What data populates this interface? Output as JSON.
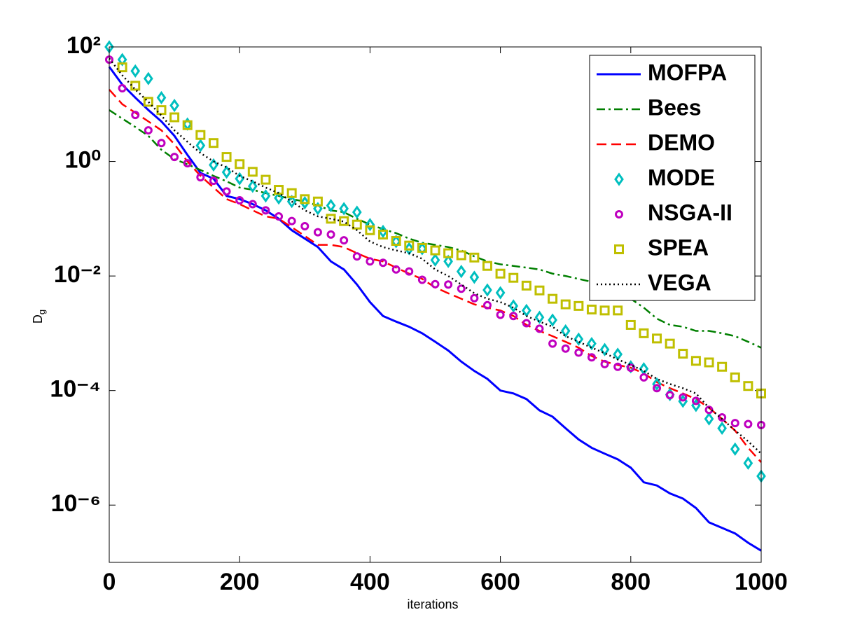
{
  "chart_data": {
    "type": "line",
    "xlabel": "iterations",
    "ylabel": "D",
    "ylabel_sub": "g",
    "log_y": true,
    "legend": "upper right",
    "xlim": [
      0,
      1000
    ],
    "xticks": [
      0,
      200,
      400,
      600,
      800,
      1000
    ],
    "ylim": [
      1e-07,
      100
    ],
    "yticks": [
      {
        "value": 100,
        "label": "10²"
      },
      {
        "value": 1,
        "label": "10⁰"
      },
      {
        "value": 0.01,
        "label": "10⁻²"
      },
      {
        "value": 0.0001,
        "label": "10⁻⁴"
      },
      {
        "value": 1e-06,
        "label": "10⁻⁶"
      }
    ],
    "x": [
      0,
      20,
      40,
      60,
      80,
      100,
      120,
      140,
      160,
      180,
      200,
      220,
      240,
      260,
      280,
      300,
      320,
      340,
      360,
      380,
      400,
      420,
      440,
      460,
      480,
      500,
      520,
      540,
      560,
      580,
      600,
      620,
      640,
      660,
      680,
      700,
      720,
      740,
      760,
      780,
      800,
      820,
      840,
      860,
      880,
      900,
      920,
      940,
      960,
      980,
      1000
    ],
    "series": [
      {
        "name": "MOFPA",
        "color": "#0000ff",
        "style": "solid",
        "values": [
          45,
          22,
          13,
          7.9,
          5,
          2.8,
          1.3,
          0.63,
          0.5,
          0.25,
          0.22,
          0.18,
          0.14,
          0.1,
          0.063,
          0.045,
          0.032,
          0.018,
          0.013,
          0.0071,
          0.0035,
          0.002,
          0.0016,
          0.0013,
          0.001,
          0.00071,
          0.0005,
          0.00032,
          0.00022,
          0.00016,
          0.0001,
          8.9e-05,
          7.1e-05,
          4.5e-05,
          3.5e-05,
          2.2e-05,
          1.4e-05,
          1e-05,
          7.9e-06,
          6.3e-06,
          4.5e-06,
          2.5e-06,
          2.2e-06,
          1.6e-06,
          1.3e-06,
          8.9e-07,
          5e-07,
          4e-07,
          3.2e-07,
          2.2e-07,
          1.6e-07
        ]
      },
      {
        "name": "Bees",
        "color": "#007f00",
        "style": "dashdot",
        "values": [
          7.9,
          5.6,
          4,
          2.8,
          1.6,
          1.1,
          0.89,
          0.71,
          0.56,
          0.45,
          0.35,
          0.32,
          0.28,
          0.25,
          0.22,
          0.2,
          0.17,
          0.14,
          0.13,
          0.1,
          0.079,
          0.066,
          0.056,
          0.045,
          0.038,
          0.035,
          0.032,
          0.028,
          0.022,
          0.018,
          0.016,
          0.015,
          0.014,
          0.013,
          0.011,
          0.01,
          0.0089,
          0.0079,
          0.0063,
          0.005,
          0.004,
          0.0028,
          0.0018,
          0.0014,
          0.0013,
          0.0011,
          0.0011,
          0.001,
          0.00089,
          0.00071,
          0.00056
        ]
      },
      {
        "name": "DEMO",
        "color": "#ff0000",
        "style": "dashed",
        "values": [
          18,
          10,
          7.1,
          5,
          3.5,
          2,
          1,
          0.56,
          0.35,
          0.22,
          0.18,
          0.14,
          0.11,
          0.1,
          0.071,
          0.05,
          0.035,
          0.035,
          0.032,
          0.025,
          0.02,
          0.018,
          0.014,
          0.011,
          0.0089,
          0.0063,
          0.005,
          0.004,
          0.0032,
          0.0028,
          0.0025,
          0.002,
          0.0014,
          0.0011,
          0.00089,
          0.00071,
          0.00056,
          0.0004,
          0.00032,
          0.00028,
          0.00025,
          0.0002,
          0.00014,
          0.00011,
          8.9e-05,
          7.1e-05,
          5e-05,
          3.2e-05,
          2e-05,
          1e-05,
          5.6e-06
        ]
      },
      {
        "name": "MODE",
        "color": "#00bfbf",
        "marker": "diamond",
        "values": [
          100,
          60,
          38,
          28,
          13,
          9.5,
          4.5,
          1.9,
          0.87,
          0.65,
          0.5,
          0.37,
          0.25,
          0.23,
          0.2,
          0.19,
          0.15,
          0.17,
          0.15,
          0.13,
          0.079,
          0.06,
          0.04,
          0.03,
          0.03,
          0.019,
          0.018,
          0.012,
          0.0095,
          0.0057,
          0.0051,
          0.003,
          0.0025,
          0.0019,
          0.0017,
          0.0011,
          0.00079,
          0.00066,
          0.00052,
          0.00043,
          0.00026,
          0.00024,
          0.00013,
          8.5e-05,
          6.5e-05,
          5.5e-05,
          3.2e-05,
          2.2e-05,
          9.5e-06,
          5.4e-06,
          3.2e-06
        ]
      },
      {
        "name": "NSGA-II",
        "color": "#bf00bf",
        "marker": "circle",
        "values": [
          60,
          19,
          6.5,
          3.5,
          2.1,
          1.2,
          0.93,
          0.53,
          0.46,
          0.3,
          0.21,
          0.18,
          0.14,
          0.11,
          0.091,
          0.074,
          0.058,
          0.053,
          0.042,
          0.022,
          0.018,
          0.017,
          0.013,
          0.012,
          0.0086,
          0.0072,
          0.0071,
          0.006,
          0.0041,
          0.0031,
          0.0021,
          0.002,
          0.0015,
          0.0012,
          0.00066,
          0.00054,
          0.00046,
          0.00038,
          0.00029,
          0.00026,
          0.00025,
          0.00017,
          0.00011,
          8.3e-05,
          7.6e-05,
          6.6e-05,
          4.6e-05,
          3.4e-05,
          2.7e-05,
          2.6e-05,
          2.5e-05
        ]
      },
      {
        "name": "SPEA",
        "color": "#bfbf00",
        "marker": "square",
        "values": [
          null,
          44,
          21,
          11,
          7.9,
          5.9,
          4.3,
          2.9,
          2.1,
          1.2,
          0.9,
          0.66,
          0.48,
          0.32,
          0.28,
          0.22,
          0.2,
          0.1,
          0.091,
          0.079,
          0.063,
          0.053,
          0.041,
          0.034,
          0.031,
          0.028,
          0.025,
          0.023,
          0.021,
          0.015,
          0.011,
          0.0093,
          0.0068,
          0.0056,
          0.004,
          0.0032,
          0.003,
          0.0026,
          0.0025,
          0.0025,
          0.0014,
          0.001,
          0.00081,
          0.00066,
          0.00044,
          0.00033,
          0.00031,
          0.00026,
          0.00017,
          0.00012,
          8.9e-05
        ]
      },
      {
        "name": "VEGA",
        "color": "#000000",
        "style": "dotted",
        "values": [
          63,
          32,
          18,
          11,
          6.3,
          3.5,
          2.2,
          1.4,
          1,
          0.79,
          0.56,
          0.45,
          0.35,
          0.28,
          0.2,
          0.14,
          0.11,
          0.1,
          0.089,
          0.063,
          0.04,
          0.032,
          0.028,
          0.025,
          0.02,
          0.013,
          0.01,
          0.0071,
          0.005,
          0.004,
          0.0035,
          0.0028,
          0.002,
          0.0016,
          0.0013,
          0.00089,
          0.00071,
          0.00056,
          0.00045,
          0.00035,
          0.00028,
          0.00022,
          0.00016,
          0.00013,
          0.00011,
          8.9e-05,
          5e-05,
          3.2e-05,
          2e-05,
          1.3e-05,
          7.9e-06
        ]
      }
    ]
  }
}
